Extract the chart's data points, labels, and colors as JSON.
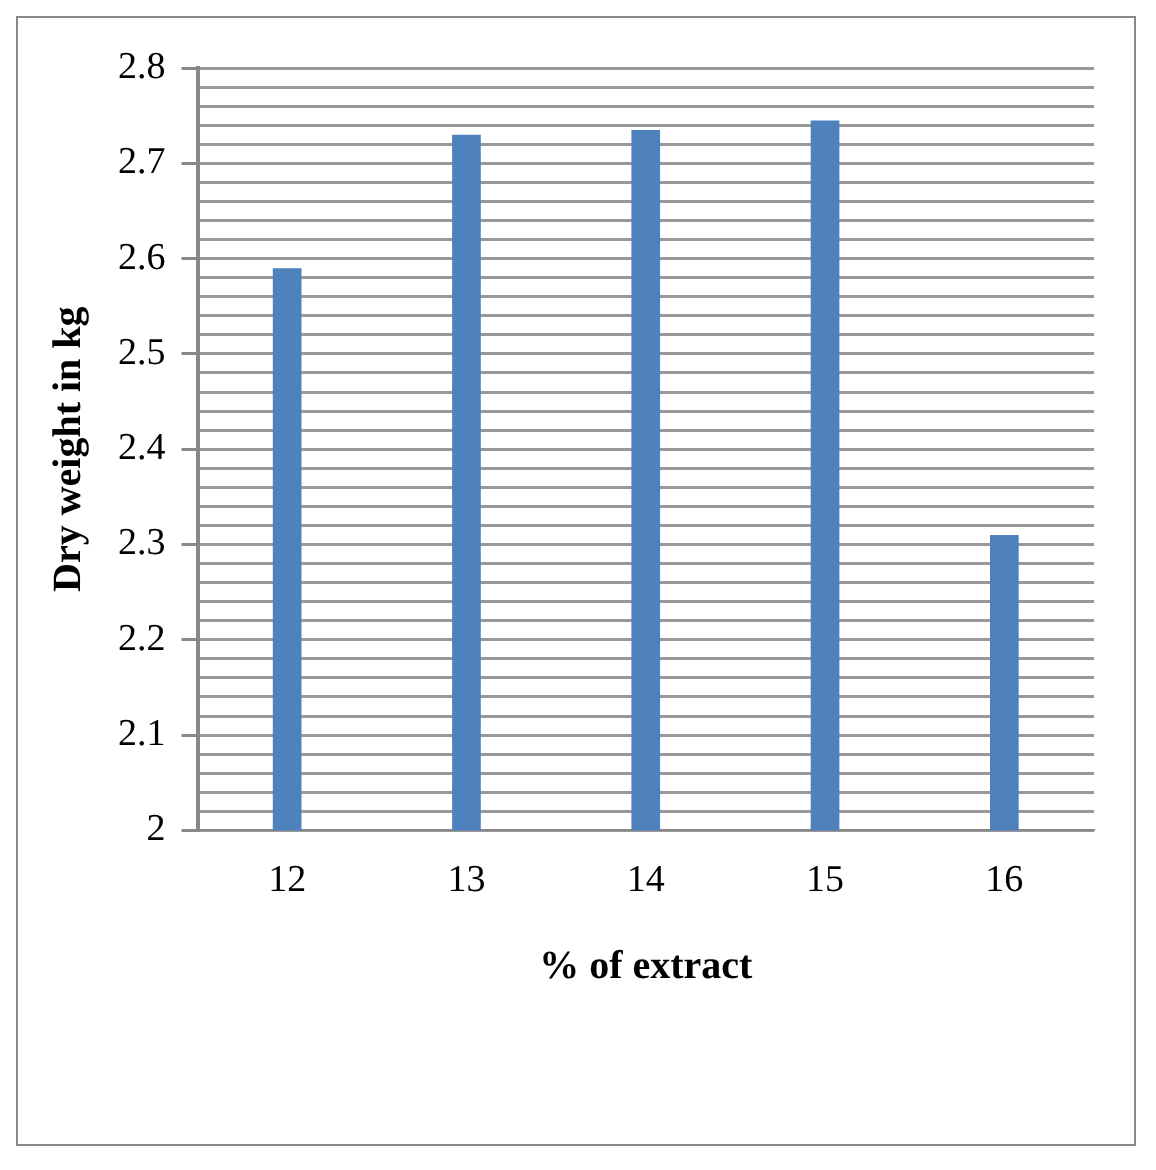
{
  "chart_data": {
    "type": "bar",
    "xlabel": "% of extract",
    "ylabel": "Dry weight in kg",
    "categories": [
      "12",
      "13",
      "14",
      "15",
      "16"
    ],
    "values": [
      2.59,
      2.73,
      2.735,
      2.745,
      2.31
    ],
    "color": "#4f81bd",
    "ylim": [
      2,
      2.8
    ],
    "yticks": [
      2,
      {
        "value": 2.02,
        "label": null
      },
      {
        "value": 2.04,
        "label": null
      },
      {
        "value": 2.06,
        "label": null
      },
      {
        "value": 2.08,
        "label": null
      },
      2.1,
      {
        "value": 2.12,
        "label": null
      },
      {
        "value": 2.14,
        "label": null
      },
      {
        "value": 2.16,
        "label": null
      },
      {
        "value": 2.18,
        "label": null
      },
      2.2,
      {
        "value": 2.22,
        "label": null
      },
      {
        "value": 2.24,
        "label": null
      },
      {
        "value": 2.26,
        "label": null
      },
      {
        "value": 2.28,
        "label": null
      },
      2.3,
      {
        "value": 2.32,
        "label": null
      },
      {
        "value": 2.34,
        "label": null
      },
      {
        "value": 2.36,
        "label": null
      },
      {
        "value": 2.38,
        "label": null
      },
      2.4,
      {
        "value": 2.42,
        "label": null
      },
      {
        "value": 2.44,
        "label": null
      },
      {
        "value": 2.46,
        "label": null
      },
      {
        "value": 2.48,
        "label": null
      },
      2.5,
      {
        "value": 2.52,
        "label": null
      },
      {
        "value": 2.54,
        "label": null
      },
      {
        "value": 2.56,
        "label": null
      },
      {
        "value": 2.58,
        "label": null
      },
      2.6,
      {
        "value": 2.62,
        "label": null
      },
      {
        "value": 2.64,
        "label": null
      },
      {
        "value": 2.66,
        "label": null
      },
      {
        "value": 2.68,
        "label": null
      },
      2.7,
      {
        "value": 2.72,
        "label": null
      },
      {
        "value": 2.74,
        "label": null
      },
      {
        "value": 2.76,
        "label": null
      },
      {
        "value": 2.78,
        "label": null
      },
      2.8
    ],
    "grid": "y",
    "legend": false
  }
}
